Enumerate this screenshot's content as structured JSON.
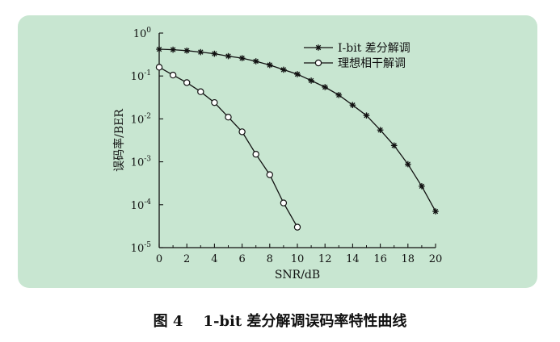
{
  "chart_data": {
    "type": "line",
    "xlabel": "SNR/dB",
    "ylabel": "误码率/BER",
    "xlim": [
      0,
      20
    ],
    "ylim": [
      1e-05,
      1
    ],
    "yscale": "log",
    "x_ticks": [
      "0",
      "2",
      "4",
      "6",
      "8",
      "10",
      "12",
      "14",
      "16",
      "18",
      "20"
    ],
    "y_ticks": [
      {
        "base": "10",
        "exp": "0"
      },
      {
        "base": "10",
        "exp": "-1"
      },
      {
        "base": "10",
        "exp": "-2"
      },
      {
        "base": "10",
        "exp": "-3"
      },
      {
        "base": "10",
        "exp": "-4"
      },
      {
        "base": "10",
        "exp": "-5"
      }
    ],
    "grid": false,
    "legend_position": "top-right",
    "series": [
      {
        "name": "I-bit 差分解调",
        "marker": "asterisk",
        "x": [
          0,
          1,
          2,
          3,
          4,
          5,
          6,
          7,
          8,
          9,
          10,
          11,
          12,
          13,
          14,
          15,
          16,
          17,
          18,
          19,
          20
        ],
        "y": [
          0.42,
          0.41,
          0.39,
          0.36,
          0.33,
          0.29,
          0.26,
          0.22,
          0.18,
          0.14,
          0.11,
          0.078,
          0.055,
          0.036,
          0.021,
          0.012,
          0.0055,
          0.0024,
          0.00088,
          0.00027,
          7e-05
        ]
      },
      {
        "name": "理想相干解调",
        "marker": "circle",
        "x": [
          0,
          1,
          2,
          3,
          4,
          5,
          6,
          7,
          8,
          9,
          10
        ],
        "y": [
          0.16,
          0.105,
          0.07,
          0.043,
          0.024,
          0.011,
          0.005,
          0.0015,
          0.0005,
          0.00011,
          3e-05
        ]
      }
    ]
  },
  "caption": "图 4    1-bit 差分解调误码率特性曲线"
}
